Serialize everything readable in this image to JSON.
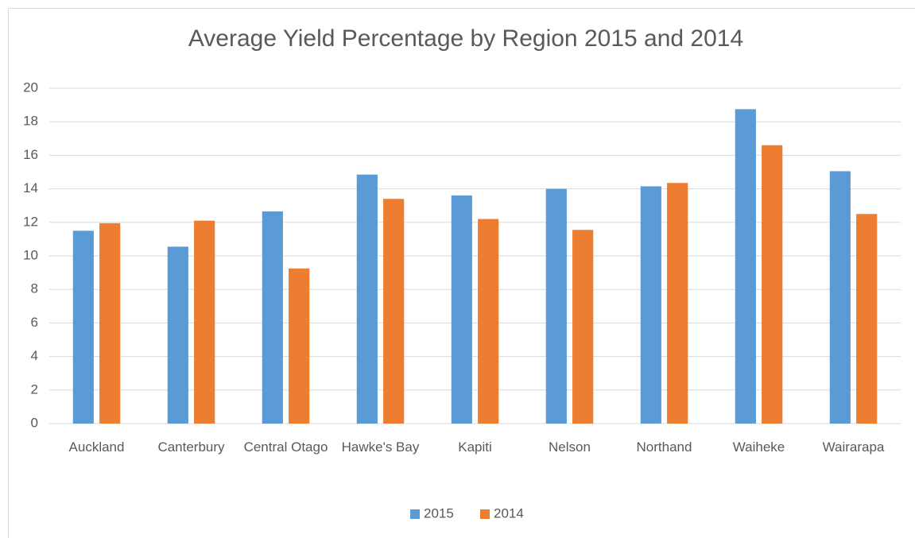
{
  "chart_data": {
    "type": "bar",
    "title": "Average Yield Percentage by Region 2015 and 2014",
    "categories": [
      "Auckland",
      "Canterbury",
      "Central Otago",
      "Hawke's Bay",
      "Kapiti",
      "Nelson",
      "Northand",
      "Waiheke",
      "Wairarapa"
    ],
    "series": [
      {
        "name": "2015",
        "color": "#5b9bd5",
        "values": [
          11.5,
          10.55,
          12.65,
          14.85,
          13.6,
          14.0,
          14.15,
          18.75,
          15.05
        ]
      },
      {
        "name": "2014",
        "color": "#ed7d31",
        "values": [
          11.95,
          12.1,
          9.25,
          13.4,
          12.2,
          11.55,
          14.35,
          16.6,
          12.5
        ]
      }
    ],
    "ylim": [
      0,
      20
    ],
    "yticks": [
      0,
      2,
      4,
      6,
      8,
      10,
      12,
      14,
      16,
      18,
      20
    ],
    "grid": true,
    "legend": "bottom"
  }
}
